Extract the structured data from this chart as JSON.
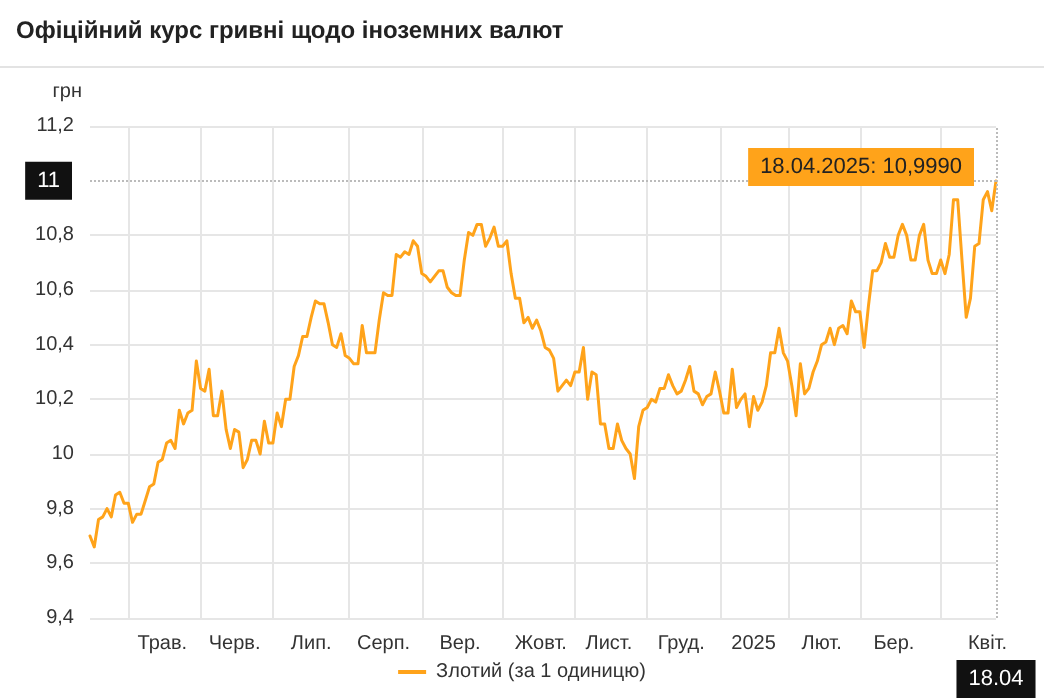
{
  "chart_data": {
    "type": "line",
    "title": "Офіційний курс гривні щодо іноземних валют",
    "ylabel": "грн",
    "categories": [
      null,
      null,
      null,
      null,
      null,
      null,
      null,
      null,
      null,
      null,
      null,
      null,
      null,
      null,
      null,
      null,
      null,
      "Трав.",
      null,
      null,
      null,
      null,
      null,
      null,
      null,
      null,
      null,
      null,
      null,
      null,
      null,
      null,
      null,
      null,
      "Черв.",
      null,
      null,
      null,
      null,
      null,
      null,
      null,
      null,
      null,
      null,
      null,
      null,
      null,
      null,
      null,
      null,
      null,
      "Лип.",
      null,
      null,
      null,
      null,
      null,
      null,
      null,
      null,
      null,
      null,
      null,
      null,
      null,
      null,
      null,
      null,
      "Серп.",
      null,
      null,
      null,
      null,
      null,
      null,
      null,
      null,
      null,
      null,
      null,
      null,
      null,
      null,
      null,
      null,
      null,
      "Вер.",
      null,
      null,
      null,
      null,
      null,
      null,
      null,
      null,
      null,
      null,
      null,
      null,
      null,
      null,
      null,
      null,
      null,
      null,
      "Жовт.",
      null,
      null,
      null,
      null,
      null,
      null,
      null,
      null,
      null,
      null,
      null,
      null,
      null,
      null,
      null,
      "Лист.",
      null,
      null,
      null,
      null,
      null,
      null,
      null,
      null,
      null,
      null,
      null,
      null,
      null,
      null,
      null,
      null,
      "Груд.",
      null,
      null,
      null,
      null,
      null,
      null,
      null,
      null,
      null,
      null,
      null,
      null,
      null,
      null,
      null,
      null,
      "2025",
      null,
      null,
      null,
      null,
      null,
      null,
      null,
      null,
      null,
      null,
      null,
      null,
      null,
      null,
      null,
      "Лют.",
      null,
      null,
      null,
      null,
      null,
      null,
      null,
      null,
      null,
      null,
      null,
      null,
      null,
      null,
      null,
      null,
      "Бер.",
      null,
      null,
      null,
      null,
      null,
      null,
      null,
      null,
      null,
      null,
      null,
      null,
      null,
      null,
      null,
      null,
      null,
      null,
      null,
      null,
      null,
      "Квіт.",
      null,
      "18.04"
    ],
    "ylim": [
      9.4,
      11.2
    ],
    "yticks": [
      {
        "value": 9.4,
        "label": "9,4"
      },
      {
        "value": 9.6,
        "label": "9,6"
      },
      {
        "value": 9.8,
        "label": "9,8"
      },
      {
        "value": 10,
        "label": "10"
      },
      {
        "value": 10.2,
        "label": "10,2"
      },
      {
        "value": 10.4,
        "label": "10,4"
      },
      {
        "value": 10.6,
        "label": "10,6"
      },
      {
        "value": 10.8,
        "label": "10,8"
      },
      {
        "value": 11.2,
        "label": "11,2"
      }
    ],
    "grid": true,
    "legend": "bottom",
    "line_style": "solid",
    "marker": "none",
    "ref_lines": [
      {
        "axis": "y",
        "value": 11,
        "label": "11",
        "line_style": "dotted",
        "color": "#bbbbbb"
      },
      {
        "axis": "x",
        "value": "18.04",
        "line_style": "dotted",
        "color": "#bbbbbb"
      }
    ],
    "annotations": [
      {
        "text": "18.04.2025: 10,9990",
        "x": "18.04",
        "y": 10.999
      }
    ],
    "series": [
      {
        "name": "Злотий (за 1 одиницю)",
        "color": "#ffa31a",
        "values": [
          9.7,
          9.66,
          9.76,
          9.77,
          9.8,
          9.77,
          9.85,
          9.86,
          9.82,
          9.82,
          9.75,
          9.78,
          9.78,
          9.83,
          9.88,
          9.89,
          9.97,
          9.98,
          10.04,
          10.05,
          10.02,
          10.16,
          10.11,
          10.15,
          10.16,
          10.34,
          10.24,
          10.23,
          10.31,
          10.14,
          10.14,
          10.23,
          10.09,
          10.02,
          10.09,
          10.08,
          9.95,
          9.98,
          10.05,
          10.05,
          10.0,
          10.12,
          10.04,
          10.04,
          10.15,
          10.1,
          10.2,
          10.2,
          10.32,
          10.36,
          10.43,
          10.43,
          10.5,
          10.56,
          10.55,
          10.55,
          10.48,
          10.4,
          10.39,
          10.44,
          10.36,
          10.35,
          10.33,
          10.33,
          10.47,
          10.37,
          10.37,
          10.37,
          10.49,
          10.59,
          10.58,
          10.58,
          10.73,
          10.72,
          10.74,
          10.73,
          10.78,
          10.76,
          10.66,
          10.65,
          10.63,
          10.65,
          10.67,
          10.67,
          10.61,
          10.59,
          10.58,
          10.58,
          10.71,
          10.81,
          10.8,
          10.84,
          10.84,
          10.76,
          10.79,
          10.83,
          10.76,
          10.76,
          10.78,
          10.66,
          10.57,
          10.57,
          10.48,
          10.5,
          10.46,
          10.49,
          10.45,
          10.39,
          10.38,
          10.35,
          10.23,
          10.25,
          10.27,
          10.25,
          10.3,
          10.3,
          10.39,
          10.2,
          10.3,
          10.29,
          10.11,
          10.11,
          10.02,
          10.02,
          10.11,
          10.05,
          10.02,
          10.0,
          9.91,
          10.1,
          10.16,
          10.17,
          10.2,
          10.19,
          10.24,
          10.24,
          10.29,
          10.25,
          10.22,
          10.23,
          10.27,
          10.32,
          10.23,
          10.22,
          10.18,
          10.21,
          10.22,
          10.3,
          10.23,
          10.15,
          10.15,
          10.31,
          10.17,
          10.2,
          10.22,
          10.1,
          10.21,
          10.16,
          10.19,
          10.25,
          10.37,
          10.37,
          10.46,
          10.37,
          10.34,
          10.25,
          10.14,
          10.33,
          10.22,
          10.24,
          10.3,
          10.34,
          10.4,
          10.41,
          10.46,
          10.4,
          10.46,
          10.47,
          10.44,
          10.56,
          10.52,
          10.52,
          10.39,
          10.54,
          10.67,
          10.67,
          10.7,
          10.77,
          10.72,
          10.72,
          10.8,
          10.84,
          10.8,
          10.71,
          10.71,
          10.8,
          10.84,
          10.71,
          10.66,
          10.66,
          10.71,
          10.66,
          10.73,
          10.93,
          10.93,
          10.71,
          10.5,
          10.57,
          10.76,
          10.77,
          10.93,
          10.96,
          10.89,
          10.999
        ]
      }
    ]
  }
}
